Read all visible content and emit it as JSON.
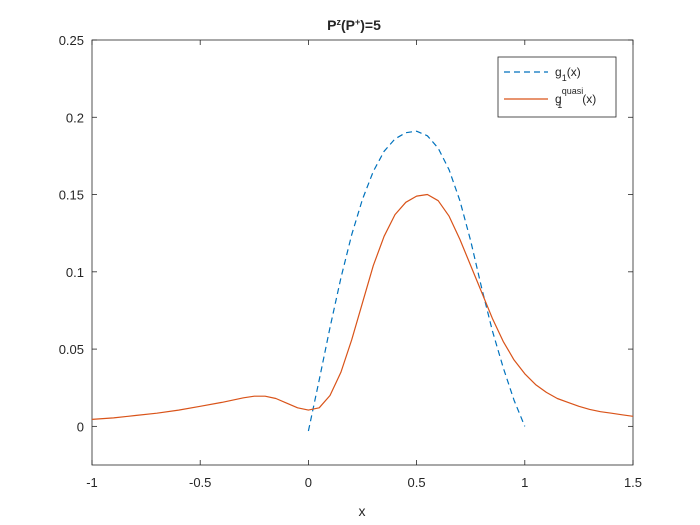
{
  "chart_data": {
    "type": "line",
    "title": {
      "base": "P",
      "sup1": "z",
      "mid": "(P",
      "sup2": "+",
      "end": ")=5"
    },
    "xlabel": "x",
    "ylabel": "",
    "xlim": [
      -1,
      1.5
    ],
    "ylim": [
      -0.025,
      0.25
    ],
    "xticks": [
      -1,
      -0.5,
      0,
      0.5,
      1,
      1.5
    ],
    "xtick_labels": [
      "-1",
      "-0.5",
      "0",
      "0.5",
      "1",
      "1.5"
    ],
    "yticks": [
      0,
      0.05,
      0.1,
      0.15,
      0.2,
      0.25
    ],
    "ytick_labels": [
      "0",
      "0.05",
      "0.1",
      "0.15",
      "0.2",
      "0.25"
    ],
    "grid": false,
    "legend_position": "top-right",
    "series": [
      {
        "legend": {
          "base": "g",
          "sub": "1",
          "sup": "",
          "suffix": "(x)"
        },
        "color": "#0072BD",
        "style": "dashed",
        "x": [
          0.0,
          0.05,
          0.1,
          0.15,
          0.2,
          0.25,
          0.3,
          0.35,
          0.4,
          0.45,
          0.5,
          0.55,
          0.6,
          0.65,
          0.7,
          0.75,
          0.8,
          0.85,
          0.9,
          0.95,
          1.0
        ],
        "y": [
          -0.003,
          0.03,
          0.064,
          0.096,
          0.124,
          0.147,
          0.165,
          0.178,
          0.186,
          0.19,
          0.191,
          0.188,
          0.18,
          0.166,
          0.146,
          0.12,
          0.09,
          0.062,
          0.038,
          0.017,
          0.0
        ]
      },
      {
        "legend": {
          "base": "g",
          "sub": "1",
          "sup": "quasi",
          "suffix": "(x)"
        },
        "color": "#D95319",
        "style": "solid",
        "x": [
          -1.0,
          -0.9,
          -0.8,
          -0.7,
          -0.6,
          -0.5,
          -0.4,
          -0.3,
          -0.25,
          -0.2,
          -0.15,
          -0.1,
          -0.05,
          0.0,
          0.05,
          0.1,
          0.15,
          0.2,
          0.25,
          0.3,
          0.35,
          0.4,
          0.45,
          0.5,
          0.55,
          0.6,
          0.65,
          0.7,
          0.75,
          0.8,
          0.85,
          0.9,
          0.95,
          1.0,
          1.05,
          1.1,
          1.15,
          1.2,
          1.25,
          1.3,
          1.35,
          1.4,
          1.45,
          1.5
        ],
        "y": [
          0.0045,
          0.0055,
          0.007,
          0.0085,
          0.0105,
          0.013,
          0.0155,
          0.0185,
          0.0195,
          0.0195,
          0.018,
          0.015,
          0.012,
          0.0105,
          0.012,
          0.02,
          0.035,
          0.056,
          0.08,
          0.104,
          0.123,
          0.137,
          0.145,
          0.149,
          0.15,
          0.146,
          0.136,
          0.121,
          0.104,
          0.087,
          0.07,
          0.055,
          0.043,
          0.034,
          0.027,
          0.022,
          0.018,
          0.0155,
          0.013,
          0.011,
          0.0095,
          0.0085,
          0.0075,
          0.0065
        ]
      }
    ]
  }
}
